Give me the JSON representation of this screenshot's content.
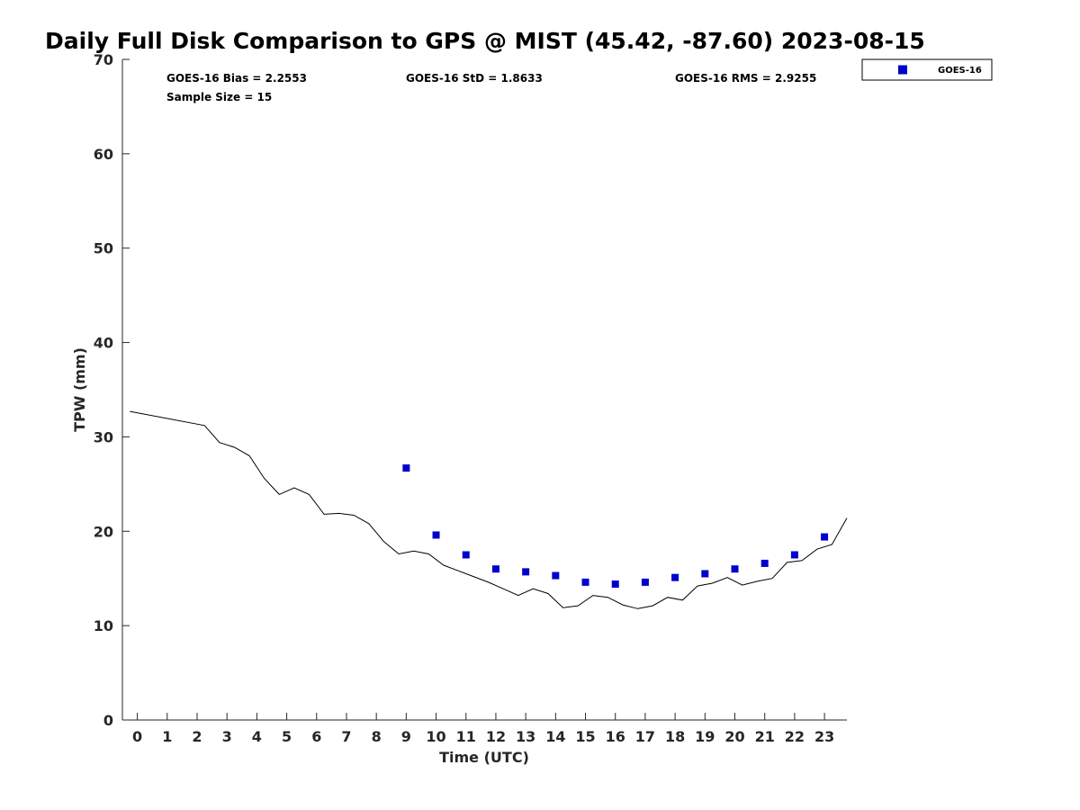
{
  "chart_data": {
    "type": "scatter",
    "title": "Daily Full Disk Comparison to GPS @ MIST (45.42, -87.60) 2023-08-15",
    "xlabel": "Time (UTC)",
    "ylabel": "TPW (mm)",
    "xlim": [
      -0.5,
      23.75
    ],
    "ylim": [
      0,
      70
    ],
    "x_ticks": [
      0,
      1,
      2,
      3,
      4,
      5,
      6,
      7,
      8,
      9,
      10,
      11,
      12,
      13,
      14,
      15,
      16,
      17,
      18,
      19,
      20,
      21,
      22,
      23
    ],
    "y_ticks": [
      0,
      10,
      20,
      30,
      40,
      50,
      60,
      70
    ],
    "legend_position": "top-right-outside",
    "stats": {
      "bias": "GOES-16 Bias = 2.2553",
      "std": "GOES-16 StD = 1.8633",
      "rms": "GOES-16 RMS = 2.9255",
      "sample": "Sample Size = 15"
    },
    "series": [
      {
        "name": "GPS",
        "kind": "line",
        "color": "#000000",
        "x": [
          -0.25,
          2.25,
          2.75,
          3.25,
          3.75,
          4.25,
          4.75,
          5.25,
          5.75,
          6.25,
          6.75,
          7.25,
          7.75,
          8.25,
          8.75,
          9.25,
          9.75,
          10.25,
          10.75,
          11.25,
          11.75,
          12.25,
          12.75,
          13.25,
          13.75,
          14.25,
          14.75,
          15.25,
          15.75,
          16.25,
          16.75,
          17.25,
          17.75,
          18.25,
          18.75,
          19.25,
          19.75,
          20.25,
          20.75,
          21.25,
          21.75,
          22.25,
          22.75,
          23.25,
          23.75
        ],
        "y": [
          32.7,
          31.2,
          29.4,
          28.9,
          28.0,
          25.6,
          23.9,
          24.6,
          23.9,
          21.8,
          21.9,
          21.7,
          20.8,
          18.9,
          17.6,
          17.9,
          17.6,
          16.4,
          15.8,
          15.2,
          14.6,
          13.9,
          13.2,
          13.9,
          13.4,
          11.9,
          12.1,
          13.2,
          13.0,
          12.2,
          11.8,
          12.1,
          13.0,
          12.7,
          14.2,
          14.5,
          15.1,
          14.3,
          14.7,
          15.0,
          16.7,
          16.9,
          18.1,
          18.6,
          21.4
        ]
      },
      {
        "name": "GOES-16",
        "kind": "scatter",
        "color": "#0000cc",
        "x": [
          9,
          10,
          11,
          12,
          13,
          14,
          15,
          16,
          17,
          18,
          19,
          20,
          21,
          22,
          23
        ],
        "y": [
          26.7,
          19.6,
          17.5,
          16.0,
          15.7,
          15.3,
          14.6,
          14.4,
          14.6,
          15.1,
          15.5,
          16.0,
          16.6,
          17.5,
          19.4
        ]
      }
    ]
  }
}
